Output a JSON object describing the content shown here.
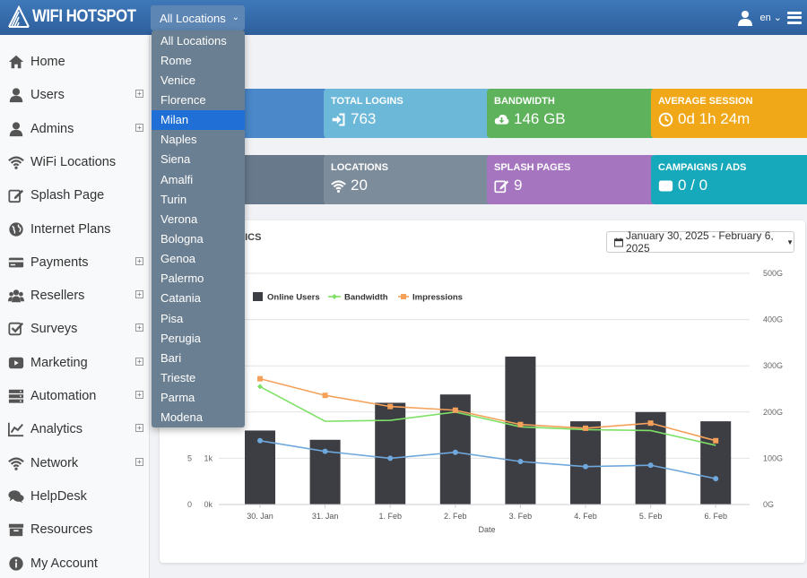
{
  "header": {
    "brand": "WIFI HOTSPOT",
    "location_select": "All Locations",
    "language": "en",
    "icons": [
      "wifi-logo-icon",
      "user-icon",
      "menu-icon"
    ]
  },
  "sidebar": {
    "items": [
      {
        "label": "Home",
        "icon": "home-icon",
        "expandable": false
      },
      {
        "label": "Users",
        "icon": "user-icon",
        "expandable": true
      },
      {
        "label": "Admins",
        "icon": "admin-icon",
        "expandable": true
      },
      {
        "label": "WiFi Locations",
        "icon": "wifi-icon",
        "expandable": false
      },
      {
        "label": "Splash Page",
        "icon": "edit-icon",
        "expandable": false
      },
      {
        "label": "Internet Plans",
        "icon": "globe-icon",
        "expandable": false
      },
      {
        "label": "Payments",
        "icon": "credit-card-icon",
        "expandable": true
      },
      {
        "label": "Resellers",
        "icon": "users-icon",
        "expandable": true
      },
      {
        "label": "Surveys",
        "icon": "checkbox-icon",
        "expandable": true
      },
      {
        "label": "Marketing",
        "icon": "youtube-play-icon",
        "expandable": true
      },
      {
        "label": "Automation",
        "icon": "server-icon",
        "expandable": true
      },
      {
        "label": "Analytics",
        "icon": "line-chart-icon",
        "expandable": true
      },
      {
        "label": "Network",
        "icon": "wifi-icon",
        "expandable": true
      },
      {
        "label": "HelpDesk",
        "icon": "comments-icon",
        "expandable": false
      },
      {
        "label": "Resources",
        "icon": "archive-icon",
        "expandable": false
      },
      {
        "label": "My Account",
        "icon": "info-icon",
        "expandable": false
      }
    ]
  },
  "location_dropdown": {
    "selected": "Milan",
    "options": [
      "All Locations",
      "Rome",
      "Venice",
      "Florence",
      "Milan",
      "Naples",
      "Siena",
      "Amalfi",
      "Turin",
      "Verona",
      "Bologna",
      "Genoa",
      "Palermo",
      "Catania",
      "Pisa",
      "Perugia",
      "Bari",
      "Trieste",
      "Parma",
      "Modena"
    ]
  },
  "cards": [
    {
      "title": "",
      "value": "",
      "color": "#4a88c9",
      "icon": ""
    },
    {
      "title": "TOTAL LOGINS",
      "value": "763",
      "color": "#6cb8d8",
      "icon": "sign-in-icon"
    },
    {
      "title": "BANDWIDTH",
      "value": "146 GB",
      "color": "#5fb25c",
      "icon": "cloud-download-icon"
    },
    {
      "title": "AVERAGE SESSION",
      "value": "0d 1h 24m",
      "color": "#f0a818",
      "icon": "clock-icon"
    },
    {
      "title": "",
      "value": "",
      "color": "#68798b",
      "icon": ""
    },
    {
      "title": "LOCATIONS",
      "value": "20",
      "color": "#7d8c9b",
      "icon": "wifi-icon"
    },
    {
      "title": "SPLASH PAGES",
      "value": "9",
      "color": "#a675bf",
      "icon": "edit-icon"
    },
    {
      "title": "CAMPAIGNS / ADS",
      "value": "0 / 0",
      "color": "#16a9bb",
      "icon": "youtube-play-icon"
    }
  ],
  "panel": {
    "title": "ISTICS",
    "date_range": "January 30, 2025 - February 6, 2025"
  },
  "chart_data": {
    "type": "bar",
    "categories": [
      "30. Jan",
      "31. Jan",
      "1. Feb",
      "2. Feb",
      "3. Feb",
      "4. Feb",
      "5. Feb",
      "6. Feb"
    ],
    "xlabel": "Date",
    "series": [
      {
        "name": "Online Users",
        "type": "bar",
        "color": "#3d3d44",
        "values": [
          1600,
          1400,
          2200,
          2380,
          3200,
          1800,
          2000,
          1800
        ]
      },
      {
        "name": "Bandwidth",
        "type": "line",
        "color": "#7ee066",
        "values": [
          255,
          180,
          182,
          200,
          168,
          162,
          160,
          128
        ]
      },
      {
        "name": "Impressions",
        "type": "line",
        "color": "#f5a15a",
        "values": [
          272,
          236,
          212,
          204,
          173,
          165,
          176,
          138
        ]
      },
      {
        "name": "",
        "type": "line",
        "color": "#6fa8dc",
        "values": [
          138,
          115,
          100,
          113,
          93,
          82,
          85,
          56
        ]
      }
    ],
    "left_axis_ticks": [
      {
        "outer": "0",
        "inner": "0k"
      },
      {
        "outer": "5",
        "inner": "1k"
      }
    ],
    "right_axis_ticks": [
      "0G",
      "100G",
      "200G",
      "300G",
      "400G",
      "500G"
    ],
    "ylim_left": [
      0,
      5000
    ],
    "ylim_right": [
      0,
      500
    ],
    "legend": "top-left",
    "grid": true
  }
}
